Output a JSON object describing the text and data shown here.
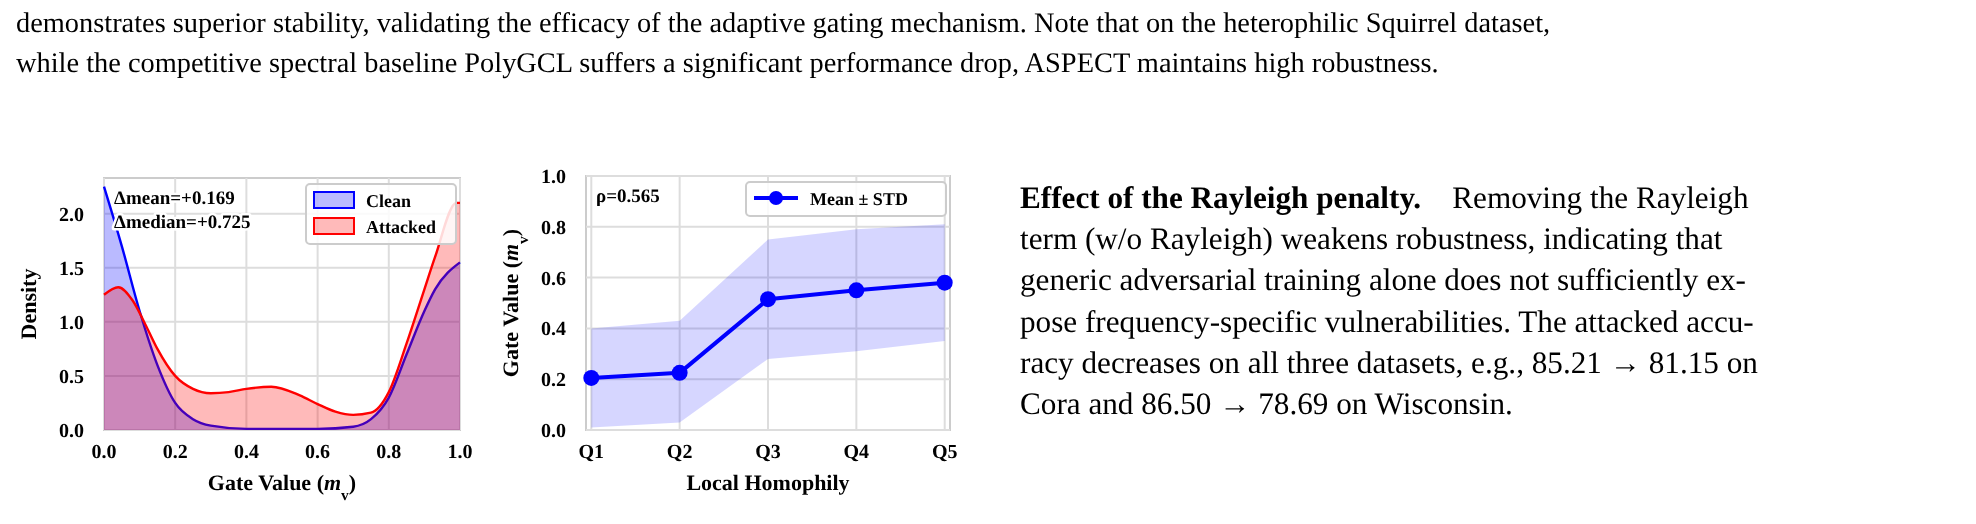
{
  "chart_data": [
    {
      "type": "other",
      "annotations": [
        "demonstrates superior stability, validating the efficacy of the adaptive gating mechanism. Note that on the heterophilic Squirrel dataset,",
        "while the competitive spectral baseline PolyGCL suffers a significant performance drop, ASPECT maintains high robustness."
      ]
    },
    {
      "type": "area",
      "xlabel": "Gate Value (m$_{v}$)",
      "ylabel": "Density",
      "grid": true,
      "legend": "top right",
      "xlim": [
        0,
        1
      ],
      "ylim": [
        0,
        2.33
      ],
      "xticks": [
        {
          "value": 0,
          "label": "0.0"
        },
        {
          "value": 0.2,
          "label": "0.2"
        },
        {
          "value": 0.4,
          "label": "0.4"
        },
        {
          "value": 0.6,
          "label": "0.6"
        },
        {
          "value": 0.8,
          "label": "0.8"
        },
        {
          "value": 1,
          "label": "1.0"
        }
      ],
      "yticks": [
        {
          "value": 0,
          "label": "0.0"
        },
        {
          "value": 0.5,
          "label": "0.5"
        },
        {
          "value": 1,
          "label": "1.0"
        },
        {
          "value": 1.5,
          "label": "1.5"
        },
        {
          "value": 2,
          "label": "2.0"
        }
      ],
      "annotations": [
        "Δmean=+0.169",
        "Δmedian=+0.725"
      ],
      "series": [
        {
          "name": "Clean",
          "color": "#0000ff",
          "x": [
            0,
            0.05,
            0.1,
            0.15,
            0.2,
            0.25,
            0.3,
            0.4,
            0.5,
            0.6,
            0.7,
            0.75,
            0.8,
            0.85,
            0.9,
            0.93,
            1
          ],
          "values": [
            2.25,
            1.7,
            1.1,
            0.6,
            0.25,
            0.1,
            0.04,
            0.01,
            0.01,
            0.01,
            0.03,
            0.1,
            0.3,
            0.7,
            1.1,
            1.3,
            1.55
          ]
        },
        {
          "name": "Attacked",
          "color": "#ff0000",
          "x": [
            0,
            0.04,
            0.08,
            0.12,
            0.15,
            0.2,
            0.25,
            0.3,
            0.35,
            0.4,
            0.47,
            0.55,
            0.6,
            0.65,
            0.7,
            0.75,
            0.8,
            0.85,
            0.9,
            0.93,
            0.99,
            1
          ],
          "values": [
            1.25,
            1.32,
            1.2,
            0.95,
            0.75,
            0.5,
            0.38,
            0.34,
            0.35,
            0.38,
            0.4,
            0.32,
            0.24,
            0.17,
            0.14,
            0.16,
            0.35,
            0.8,
            1.3,
            1.6,
            2.1,
            2.1
          ]
        }
      ]
    },
    {
      "type": "line",
      "xlabel": "Local Homophily",
      "ylabel": "Gate Value (m$_{v}$)",
      "grid": true,
      "legend": "top right",
      "marker": "circle",
      "categories": [
        "Q1",
        "Q2",
        "Q3",
        "Q4",
        "Q5"
      ],
      "ylim": [
        0,
        1
      ],
      "yticks": [
        {
          "value": 0,
          "label": "0.0"
        },
        {
          "value": 0.2,
          "label": "0.2"
        },
        {
          "value": 0.4,
          "label": "0.4"
        },
        {
          "value": 0.6,
          "label": "0.6"
        },
        {
          "value": 0.8,
          "label": "0.8"
        },
        {
          "value": 1,
          "label": "1.0"
        }
      ],
      "annotations": [
        "ρ=0.565"
      ],
      "series": [
        {
          "name": "Mean ± STD",
          "color": "#0000ff",
          "values": [
            0.205,
            0.225,
            0.515,
            0.55,
            0.58
          ],
          "lower": [
            0.01,
            0.03,
            0.28,
            0.31,
            0.35
          ],
          "upper": [
            0.4,
            0.43,
            0.75,
            0.79,
            0.81
          ]
        }
      ]
    },
    {
      "type": "other",
      "title": "Effect of the Rayleigh penalty.",
      "annotations": [
        "Removing the Rayleigh",
        "term (w/o Rayleigh) weakens robustness, indicating that",
        "generic adversarial training alone does not sufficiently ex-",
        "pose frequency-specific vulnerabilities. The attacked accu-",
        "racy decreases on all three datasets, e.g., 85.21 → 81.15 on",
        "Cora and 86.50 → 78.69 on Wisconsin."
      ]
    }
  ]
}
